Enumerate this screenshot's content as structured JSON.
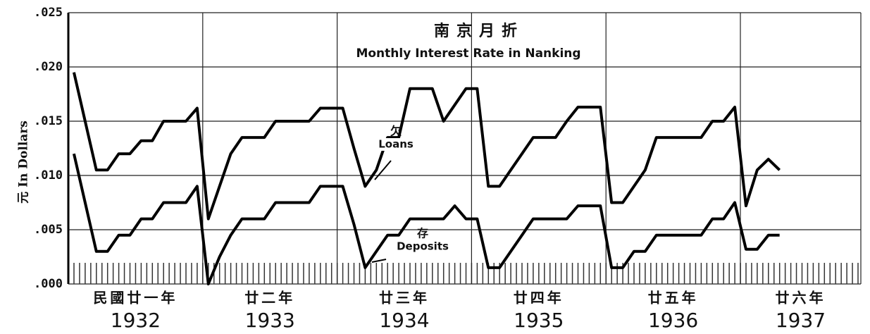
{
  "chart_data": {
    "type": "line",
    "title_chinese": "南京月折",
    "title": "Monthly Interest Rate in Nanking",
    "y_label": "元 In Dollars",
    "ylim": [
      0,
      0.025
    ],
    "yticks": [
      {
        "value": 0,
        "label": ".000"
      },
      {
        "value": 0.005,
        "label": ".005"
      },
      {
        "value": 0.01,
        "label": ".010"
      },
      {
        "value": 0.015,
        "label": ".015"
      },
      {
        "value": 0.02,
        "label": ".020"
      },
      {
        "value": 0.025,
        "label": ".025"
      }
    ],
    "grid": true,
    "year_labels": [
      {
        "chinese": "民國廿一年",
        "year": "1932"
      },
      {
        "chinese": "廿二年",
        "year": "1933"
      },
      {
        "chinese": "廿三年",
        "year": "1934"
      },
      {
        "chinese": "廿四年",
        "year": "1935"
      },
      {
        "chinese": "廿五年",
        "year": "1936"
      },
      {
        "chinese": "廿六年",
        "year": "1937"
      }
    ],
    "series": [
      {
        "name": "Loans",
        "name_chinese": "欠",
        "color": "#000",
        "values": [
          0.0195,
          0.015,
          0.0105,
          0.0105,
          0.012,
          0.012,
          0.0132,
          0.0132,
          0.015,
          0.015,
          0.015,
          0.0162,
          0.006,
          0.009,
          0.012,
          0.0135,
          0.0135,
          0.0135,
          0.015,
          0.015,
          0.015,
          0.015,
          0.0162,
          0.0162,
          0.0162,
          0.0125,
          0.009,
          0.0105,
          0.0135,
          0.0135,
          0.018,
          0.018,
          0.018,
          0.015,
          0.0165,
          0.018,
          0.018,
          0.009,
          0.009,
          0.0105,
          0.012,
          0.0135,
          0.0135,
          0.0135,
          0.015,
          0.0163,
          0.0163,
          0.0163,
          0.0075,
          0.0075,
          0.009,
          0.0105,
          0.0135,
          0.0135,
          0.0135,
          0.0135,
          0.0135,
          0.015,
          0.015,
          0.0163,
          0.0072,
          0.0105,
          0.0115,
          0.0105
        ]
      },
      {
        "name": "Deposits",
        "name_chinese": "存",
        "color": "#000",
        "values": [
          0.012,
          0.0075,
          0.003,
          0.003,
          0.0045,
          0.0045,
          0.006,
          0.006,
          0.0075,
          0.0075,
          0.0075,
          0.009,
          0,
          0.0025,
          0.0045,
          0.006,
          0.006,
          0.006,
          0.0075,
          0.0075,
          0.0075,
          0.0075,
          0.009,
          0.009,
          0.009,
          0.0055,
          0.0015,
          0.003,
          0.0045,
          0.0045,
          0.006,
          0.006,
          0.006,
          0.006,
          0.0072,
          0.006,
          0.006,
          0.0015,
          0.0015,
          0.003,
          0.0045,
          0.006,
          0.006,
          0.006,
          0.006,
          0.0072,
          0.0072,
          0.0072,
          0.0015,
          0.0015,
          0.003,
          0.003,
          0.0045,
          0.0045,
          0.0045,
          0.0045,
          0.0045,
          0.006,
          0.006,
          0.0075,
          0.0032,
          0.0032,
          0.0045,
          0.0045
        ]
      }
    ]
  }
}
